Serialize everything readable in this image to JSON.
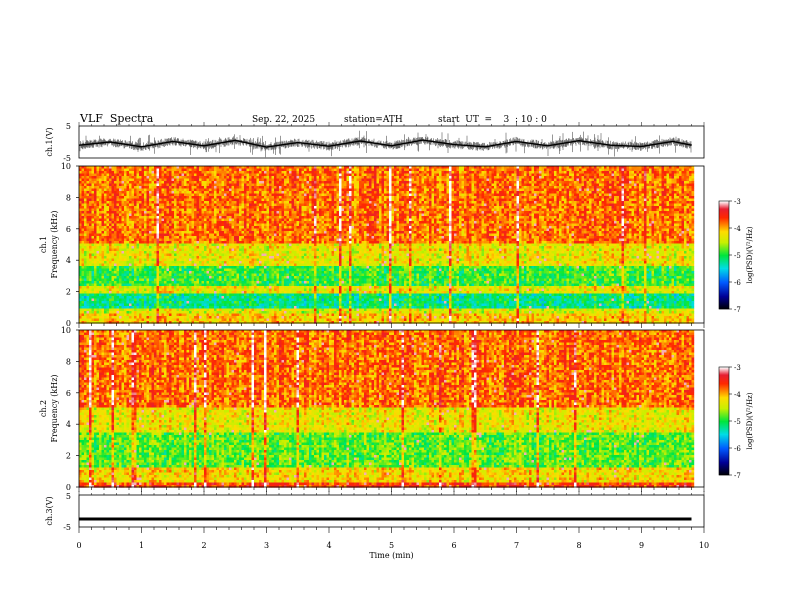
{
  "header": {
    "title": "VLF  Spectra",
    "date": "Sep. 22, 2025",
    "station": "station=ATH",
    "start_ut": "start  UT  =    3  : 10 : 0"
  },
  "chart_data": [
    {
      "type": "line",
      "panel": "ch1-waveform",
      "ylabel": "ch.1(V)",
      "ylim": [
        -5,
        5
      ],
      "y_ticks": [
        "5",
        "-5"
      ],
      "xlim": [
        0,
        10
      ],
      "x": [
        0,
        0.5,
        1,
        1.5,
        2,
        2.5,
        3,
        3.5,
        4,
        4.5,
        5,
        5.5,
        6,
        6.5,
        7,
        7.5,
        8,
        8.5,
        9,
        9.5,
        9.8
      ],
      "y": [
        -1,
        0,
        -1.5,
        0.2,
        -1.2,
        0.5,
        -1.6,
        -0.2,
        -1.3,
        0.3,
        -1.2,
        0.6,
        -0.8,
        -1.5,
        0.2,
        -1.2,
        0.4,
        -1,
        -1.4,
        0.2,
        -1
      ]
    },
    {
      "type": "heatmap",
      "panel": "ch1-spectrogram",
      "ylabel": "ch.1\nFrequency (kHz)",
      "xlim": [
        0,
        10
      ],
      "ylim": [
        0,
        10
      ],
      "y_ticks": [
        "0",
        "2",
        "4",
        "6",
        "8",
        "10"
      ],
      "colorbar": {
        "label": "log(PSD)(V²/Hz)",
        "range": [
          -7,
          -3
        ],
        "ticks": [
          "-3",
          "-4",
          "-5",
          "-6",
          "-7"
        ]
      },
      "data_end_min": 9.8,
      "bands": [
        {
          "f_min": 5,
          "f_max": 10,
          "log_psd": -3.8
        },
        {
          "f_min": 3.6,
          "f_max": 5,
          "log_psd": -4.3
        },
        {
          "f_min": 2.3,
          "f_max": 3.6,
          "log_psd": -4.9
        },
        {
          "f_min": 1.8,
          "f_max": 2.3,
          "log_psd": -4.3
        },
        {
          "f_min": 1.0,
          "f_max": 1.8,
          "log_psd": -5.2
        },
        {
          "f_min": 0.6,
          "f_max": 1.0,
          "log_psd": -4.4
        },
        {
          "f_min": 0,
          "f_max": 0.6,
          "log_psd": -4.1
        }
      ]
    },
    {
      "type": "heatmap",
      "panel": "ch2-spectrogram",
      "ylabel": "ch.2\nFrequency (kHz)",
      "xlim": [
        0,
        10
      ],
      "ylim": [
        0,
        10
      ],
      "y_ticks": [
        "0",
        "2",
        "4",
        "6",
        "8",
        "10"
      ],
      "colorbar": {
        "label": "log(PSD)(V²/Hz)",
        "range": [
          -7,
          -3
        ],
        "ticks": [
          "-3",
          "-4",
          "-5",
          "-6",
          "-7"
        ]
      },
      "data_end_min": 9.8,
      "bands": [
        {
          "f_min": 5,
          "f_max": 10,
          "log_psd": -3.8
        },
        {
          "f_min": 3.5,
          "f_max": 5,
          "log_psd": -4.3
        },
        {
          "f_min": 1.2,
          "f_max": 3.5,
          "log_psd": -4.8
        },
        {
          "f_min": 0.3,
          "f_max": 1.2,
          "log_psd": -4.2
        },
        {
          "f_min": 0,
          "f_max": 0.3,
          "log_psd": -3.6
        }
      ]
    },
    {
      "type": "line",
      "panel": "ch3-waveform",
      "ylabel": "ch.3(V)",
      "xlabel": "Time (min)",
      "ylim": [
        -5,
        5
      ],
      "y_ticks": [
        "5",
        "-5"
      ],
      "xlim": [
        0,
        10
      ],
      "x_ticks": [
        "0",
        "1",
        "2",
        "3",
        "4",
        "5",
        "6",
        "7",
        "8",
        "9",
        "10"
      ],
      "x": [
        0,
        9.8
      ],
      "y": [
        -2.5,
        -2.5
      ]
    }
  ]
}
